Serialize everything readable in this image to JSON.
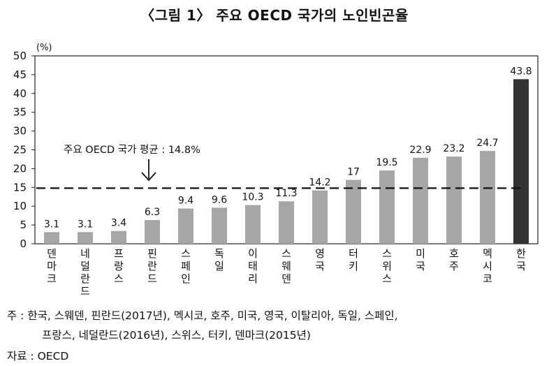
{
  "title": "〈그림 1〉 주요 OECD 국가의 노인빈곤율",
  "chart_data": {
    "type": "bar",
    "unit_label": "(%)",
    "categories": [
      "덴마크",
      "네덜란드",
      "프랑스",
      "핀란드",
      "스페인",
      "독일",
      "이태리",
      "스웨덴",
      "영국",
      "터키",
      "스위스",
      "미국",
      "호주",
      "멕시코",
      "한국"
    ],
    "values": [
      3.1,
      3.1,
      3.4,
      6.3,
      9.4,
      9.6,
      10.3,
      11.3,
      14.2,
      17,
      19.5,
      22.9,
      23.2,
      24.7,
      43.8
    ],
    "value_labels": [
      "3.1",
      "3.1",
      "3.4",
      "6.3",
      "9.4",
      "9.6",
      "10.3",
      "11.3",
      "14.2",
      "17",
      "19.5",
      "22.9",
      "23.2",
      "24.7",
      "43.8"
    ],
    "ylim": [
      0,
      50
    ],
    "yticks": [
      "0",
      "5",
      "10",
      "15",
      "20",
      "25",
      "30",
      "35",
      "40",
      "45",
      "50"
    ],
    "highlight_category": "한국",
    "bar_color": "#a6a6a6",
    "highlight_color": "#333333",
    "reference_line": {
      "value": 14.8,
      "label": "주요 OECD 국가 평균 : 14.8%",
      "style": "dashed"
    },
    "grid": false,
    "legend": "none"
  },
  "notes": {
    "line1": "주 : 한국, 스웨덴, 핀란드(2017년), 멕시코, 호주, 미국, 영국, 이탈리아, 독일, 스페인,",
    "line2": "프랑스, 네덜란드(2016년), 스위스, 터키, 덴마크(2015년)",
    "source": "자료 : OECD"
  }
}
